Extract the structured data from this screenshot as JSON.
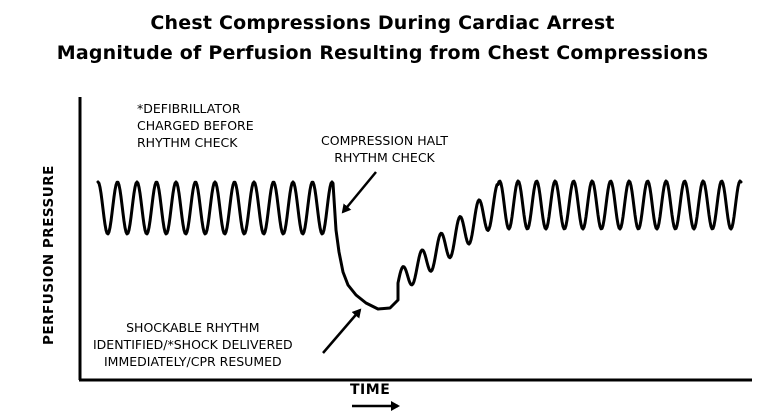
{
  "title_line1": "Chest Compressions During Cardiac Arrest",
  "title_line2": "Magnitude of Perfusion Resulting from Chest Compressions",
  "axes": {
    "ylabel": "PERFUSION PRESSURE",
    "xlabel": "TIME"
  },
  "annotations": {
    "defibrillator": [
      "*DEFIBRILLATOR",
      "CHARGED BEFORE",
      "RHYTHM CHECK"
    ],
    "compression_halt": [
      "COMPRESSION HALT",
      "RHYTHM CHECK"
    ],
    "shock": [
      "SHOCKABLE RHYTHM",
      "IDENTIFIED/*SHOCK DELIVERED",
      "IMMEDIATELY/CPR RESUMED"
    ]
  }
}
